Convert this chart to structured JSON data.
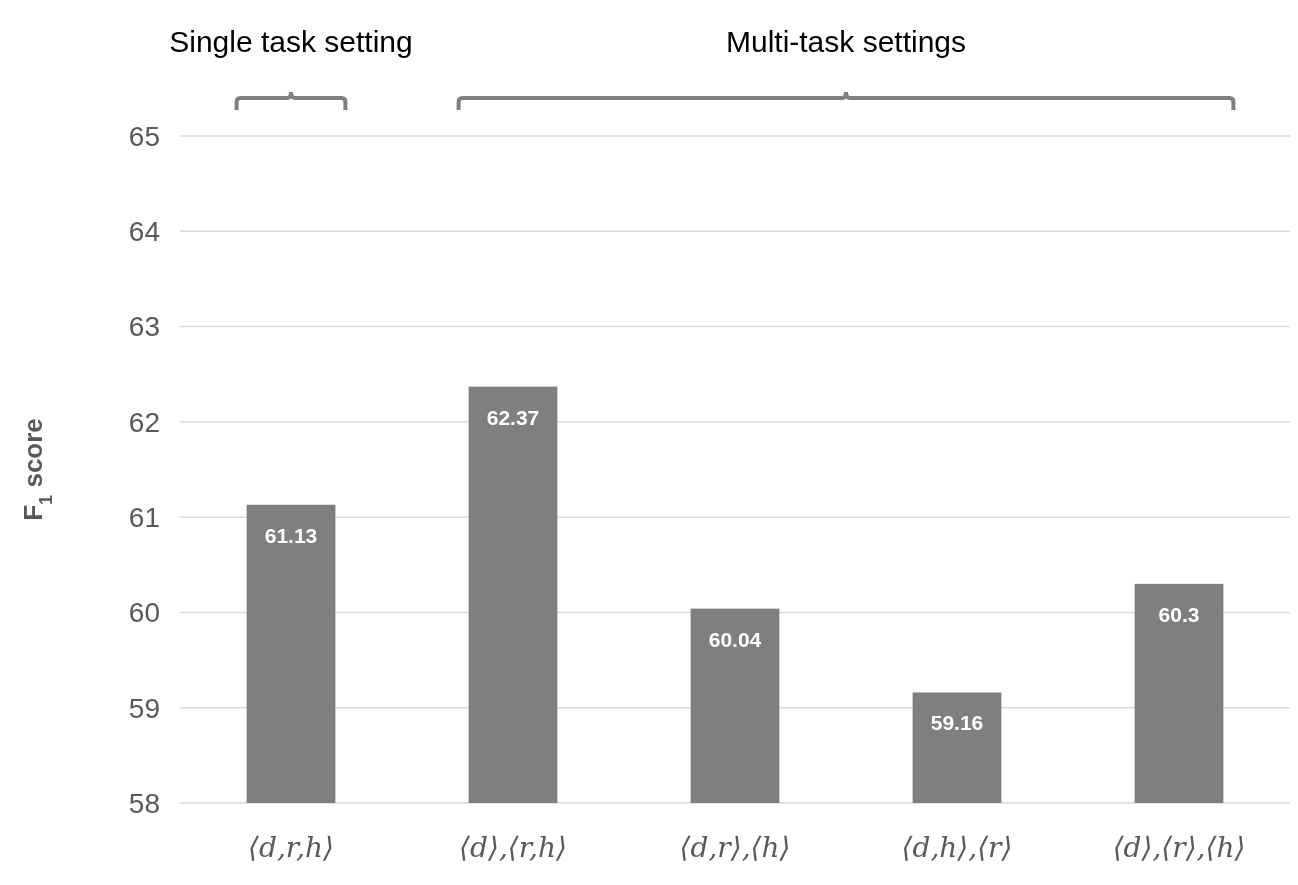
{
  "chart_data": {
    "type": "bar",
    "ylabel": "F$_{1}$ score",
    "categories": [
      "⟨d,r,h⟩",
      "⟨d⟩,⟨r,h⟩",
      "⟨d,r⟩,⟨h⟩",
      "⟨d,h⟩,⟨r⟩",
      "⟨d⟩,⟨r⟩,⟨h⟩"
    ],
    "values": [
      61.13,
      62.37,
      60.04,
      59.16,
      60.3
    ],
    "color": "#7f7f7f",
    "ylim": [
      58,
      65
    ],
    "yticks": [
      58,
      59,
      60,
      61,
      62,
      63,
      64,
      65
    ],
    "grid": "y",
    "data_labels": true,
    "annotations": [
      "Single task setting",
      "Multi-task settings"
    ]
  }
}
